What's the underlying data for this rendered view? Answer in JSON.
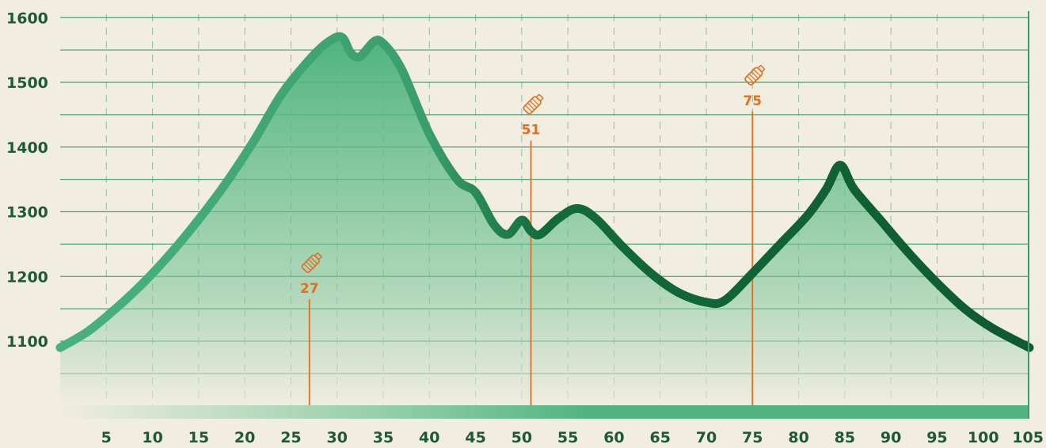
{
  "chart_data": {
    "type": "area",
    "title": "",
    "xlabel": "",
    "ylabel": "",
    "xlim": [
      0,
      105
    ],
    "ylim": [
      1000,
      1600
    ],
    "x_ticks": [
      "5",
      "10",
      "15",
      "20",
      "25",
      "30",
      "35",
      "40",
      "45",
      "50",
      "55",
      "60",
      "65",
      "70",
      "75",
      "80",
      "85",
      "90",
      "95",
      "100",
      "105"
    ],
    "y_ticks": [
      "1100",
      "1200",
      "1300",
      "1400",
      "1500",
      "1600"
    ],
    "grid": true,
    "series": [
      {
        "x": [
          0,
          3,
          6,
          9,
          12,
          15,
          18,
          21,
          24,
          27,
          29,
          30.5,
          31.5,
          32.5,
          34,
          35,
          37,
          40,
          43,
          45,
          47,
          48.5,
          50,
          51,
          52,
          54,
          56,
          58,
          61,
          64,
          67,
          70,
          72,
          75,
          78,
          81,
          83,
          84.5,
          86,
          89,
          92,
          95,
          98,
          101,
          105
        ],
        "y": [
          1090,
          1115,
          1150,
          1190,
          1236,
          1288,
          1345,
          1410,
          1482,
          1535,
          1562,
          1570,
          1545,
          1540,
          1563,
          1560,
          1520,
          1420,
          1350,
          1330,
          1280,
          1265,
          1287,
          1270,
          1265,
          1290,
          1305,
          1290,
          1245,
          1205,
          1175,
          1160,
          1163,
          1205,
          1250,
          1295,
          1335,
          1372,
          1335,
          1285,
          1235,
          1190,
          1150,
          1120,
          1090
        ]
      }
    ],
    "markers": [
      {
        "x": 27,
        "label": "27",
        "icon": "bottle-icon",
        "elevation_top": 1165
      },
      {
        "x": 51,
        "label": "51",
        "icon": "bottle-icon",
        "elevation_top": 1410
      },
      {
        "x": 75,
        "label": "75",
        "icon": "bottle-icon",
        "elevation_top": 1455
      }
    ],
    "colors": {
      "background": "#f1ede0",
      "grid": "#3e9a65",
      "line_light": "#48b27f",
      "line_dark": "#0e5a31",
      "fill_top": "#4fb47f",
      "marker": "#e0701f",
      "tick_text": "#1e5a37"
    }
  }
}
